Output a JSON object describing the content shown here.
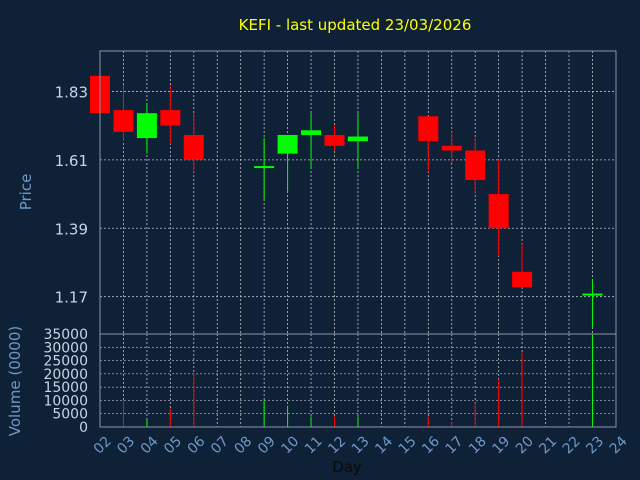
{
  "chart_data": {
    "type": "candlestick",
    "title": "KEFI - last updated 23/03/2026",
    "xlabel": "Day",
    "ylabel": "Price",
    "volume_label": "Volume (0000)",
    "grid": true,
    "price_ticks": [
      1.17,
      1.39,
      1.61,
      1.83
    ],
    "price_range": [
      1.05,
      1.96
    ],
    "volume_ticks": [
      0,
      5000,
      10000,
      15000,
      20000,
      25000,
      30000,
      35000
    ],
    "volume_range": [
      0,
      35000
    ],
    "day_ticks": [
      "02",
      "03",
      "04",
      "05",
      "06",
      "07",
      "08",
      "09",
      "10",
      "11",
      "12",
      "13",
      "14",
      "15",
      "16",
      "17",
      "18",
      "19",
      "20",
      "21",
      "22",
      "23",
      "24"
    ],
    "colors": {
      "background": "#0f2136",
      "up": "#00ff00",
      "down": "#ff0000",
      "title": "#ffff00",
      "axis_text": "#6f98c8",
      "tick_text": "#c8d4e3",
      "grid": "#c0c0c0",
      "frame": "#8a96a6"
    },
    "candles": [
      {
        "day": 2,
        "open": 1.88,
        "close": 1.76,
        "high": 1.88,
        "low": 1.76,
        "volume": 0
      },
      {
        "day": 3,
        "open": 1.77,
        "close": 1.7,
        "high": 1.85,
        "low": 1.67,
        "volume": 10000
      },
      {
        "day": 4,
        "open": 1.68,
        "close": 1.76,
        "high": 1.79,
        "low": 1.63,
        "volume": 3000
      },
      {
        "day": 5,
        "open": 1.77,
        "close": 1.72,
        "high": 1.85,
        "low": 1.66,
        "volume": 7000
      },
      {
        "day": 6,
        "open": 1.69,
        "close": 1.61,
        "high": 1.76,
        "low": 1.57,
        "volume": 20000
      },
      {
        "day": 9,
        "open": 1.585,
        "close": 1.59,
        "high": 1.68,
        "low": 1.48,
        "volume": 10000
      },
      {
        "day": 10,
        "open": 1.63,
        "close": 1.69,
        "high": 1.69,
        "low": 1.51,
        "volume": 8000
      },
      {
        "day": 11,
        "open": 1.69,
        "close": 1.705,
        "high": 1.76,
        "low": 1.58,
        "volume": 4000
      },
      {
        "day": 12,
        "open": 1.69,
        "close": 1.655,
        "high": 1.72,
        "low": 1.64,
        "volume": 4000
      },
      {
        "day": 13,
        "open": 1.67,
        "close": 1.685,
        "high": 1.76,
        "low": 1.58,
        "volume": 4000
      },
      {
        "day": 16,
        "open": 1.75,
        "close": 1.67,
        "high": 1.75,
        "low": 1.57,
        "volume": 4000
      },
      {
        "day": 17,
        "open": 1.655,
        "close": 1.64,
        "high": 1.7,
        "low": 1.6,
        "volume": 2000
      },
      {
        "day": 18,
        "open": 1.64,
        "close": 1.545,
        "high": 1.68,
        "low": 1.5,
        "volume": 9000
      },
      {
        "day": 19,
        "open": 1.5,
        "close": 1.39,
        "high": 1.61,
        "low": 1.3,
        "volume": 18000
      },
      {
        "day": 20,
        "open": 1.25,
        "close": 1.2,
        "high": 1.34,
        "low": 1.2,
        "volume": 28000
      },
      {
        "day": 23,
        "open": 1.175,
        "close": 1.18,
        "high": 1.225,
        "low": 1.07,
        "volume": 35000
      }
    ]
  }
}
